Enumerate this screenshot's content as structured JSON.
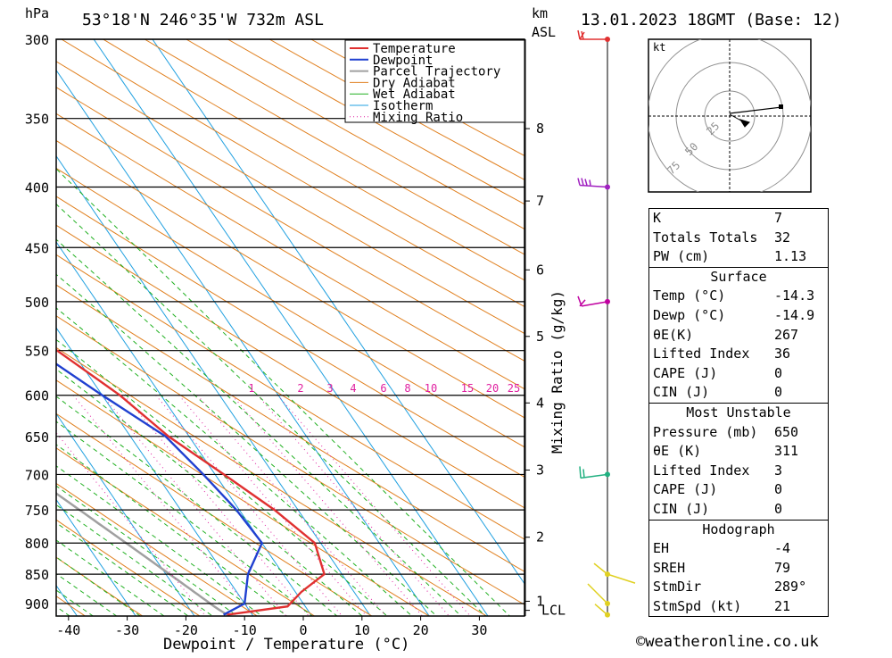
{
  "header": {
    "unit_left": "hPa",
    "location": "53°18'N 246°35'W 732m ASL",
    "unit_km": "km",
    "unit_asl": "ASL",
    "datetime": "13.01.2023 18GMT (Base: 12)"
  },
  "credit": "©weatheronline.co.uk",
  "chart_data": {
    "type": "skew-t log-p sounding",
    "xlabel": "Dewpoint / Temperature (°C)",
    "ylabel_left": "hPa",
    "ylabel_right": "Mixing Ratio (g/kg)",
    "xlim": [
      -42,
      37
    ],
    "ylim": [
      300,
      920
    ],
    "x_ticks": [
      -40,
      -30,
      -20,
      -10,
      0,
      10,
      20,
      30
    ],
    "pressure_levels": [
      300,
      350,
      400,
      450,
      500,
      550,
      600,
      650,
      700,
      750,
      800,
      850,
      900
    ],
    "height_ticks_km": [
      {
        "label": "8",
        "p": 357
      },
      {
        "label": "7",
        "p": 411
      },
      {
        "label": "6",
        "p": 470
      },
      {
        "label": "5",
        "p": 535
      },
      {
        "label": "4",
        "p": 609
      },
      {
        "label": "3",
        "p": 694
      },
      {
        "label": "2",
        "p": 791
      },
      {
        "label": "1",
        "p": 896
      },
      {
        "label": "LCL",
        "p": 912
      }
    ],
    "mixing_ratio_labels": [
      "1",
      "2",
      "3",
      "4",
      "6",
      "8",
      "10",
      "15",
      "20",
      "25"
    ],
    "legend": [
      "Temperature",
      "Dewpoint",
      "Parcel Trajectory",
      "Dry Adiabat",
      "Wet Adiabat",
      "Isotherm",
      "Mixing Ratio"
    ],
    "legend_position": "top",
    "colors": {
      "temperature": "#e03030",
      "dewpoint": "#2040d0",
      "parcel": "#a0a0a0",
      "dry_adiabat": "#e08020",
      "wet_adiabat": "#20b020",
      "isotherm": "#20a0e0",
      "mixing_ratio": "#e020a0"
    },
    "temperature": [
      {
        "p": 920,
        "t": -14.3
      },
      {
        "p": 905,
        "t": -3
      },
      {
        "p": 880,
        "t": 1
      },
      {
        "p": 850,
        "t": 7
      },
      {
        "p": 800,
        "t": 9
      },
      {
        "p": 750,
        "t": 6
      },
      {
        "p": 700,
        "t": 1.5
      },
      {
        "p": 650,
        "t": -3.5
      },
      {
        "p": 600,
        "t": -7
      },
      {
        "p": 550,
        "t": -12.5
      },
      {
        "p": 500,
        "t": -18.5
      },
      {
        "p": 450,
        "t": -25
      },
      {
        "p": 400,
        "t": -32
      },
      {
        "p": 350,
        "t": -40
      },
      {
        "p": 300,
        "t": -49
      }
    ],
    "dewpoint": [
      {
        "p": 920,
        "t": -14.9
      },
      {
        "p": 900,
        "t": -10
      },
      {
        "p": 850,
        "t": -6
      },
      {
        "p": 800,
        "t": 0
      },
      {
        "p": 750,
        "t": -0.5
      },
      {
        "p": 700,
        "t": -2
      },
      {
        "p": 650,
        "t": -4
      },
      {
        "p": 600,
        "t": -10
      },
      {
        "p": 550,
        "t": -16
      },
      {
        "p": 500,
        "t": -21
      },
      {
        "p": 450,
        "t": -29
      },
      {
        "p": 400,
        "t": -38
      },
      {
        "p": 350,
        "t": -46
      },
      {
        "p": 300,
        "t": -55
      }
    ],
    "wind_barbs": [
      {
        "p": 300,
        "color": "#e03030"
      },
      {
        "p": 400,
        "color": "#a020c0"
      },
      {
        "p": 500,
        "color": "#c000a0"
      },
      {
        "p": 700,
        "color": "#20b080"
      },
      {
        "p": 850,
        "color": "#e0d020"
      },
      {
        "p": 900,
        "color": "#e0d020"
      },
      {
        "p": 920,
        "color": "#e0d020"
      }
    ]
  },
  "hodograph": {
    "unit": "kt",
    "ring_labels": [
      "25",
      "50",
      "75"
    ]
  },
  "indices": {
    "basic": [
      {
        "label": "K",
        "value": "7"
      },
      {
        "label": "Totals Totals",
        "value": "32"
      },
      {
        "label": "PW (cm)",
        "value": "1.13"
      }
    ],
    "surface": {
      "title": "Surface",
      "rows": [
        {
          "label": "Temp (°C)",
          "value": "-14.3"
        },
        {
          "label": "Dewp (°C)",
          "value": "-14.9"
        },
        {
          "label": "θE(K)",
          "value": "267"
        },
        {
          "label": "Lifted Index",
          "value": "36"
        },
        {
          "label": "CAPE (J)",
          "value": "0"
        },
        {
          "label": "CIN (J)",
          "value": "0"
        }
      ]
    },
    "most_unstable": {
      "title": "Most Unstable",
      "rows": [
        {
          "label": "Pressure (mb)",
          "value": "650"
        },
        {
          "label": "θE (K)",
          "value": "311"
        },
        {
          "label": "Lifted Index",
          "value": "3"
        },
        {
          "label": "CAPE (J)",
          "value": "0"
        },
        {
          "label": "CIN (J)",
          "value": "0"
        }
      ]
    },
    "hodograph_block": {
      "title": "Hodograph",
      "rows": [
        {
          "label": "EH",
          "value": "-4"
        },
        {
          "label": "SREH",
          "value": "79"
        },
        {
          "label": "StmDir",
          "value": "289°"
        },
        {
          "label": "StmSpd (kt)",
          "value": "21"
        }
      ]
    }
  }
}
